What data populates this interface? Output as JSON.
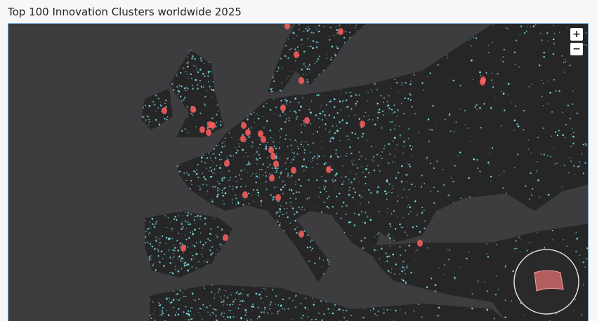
{
  "header": {
    "title": "Top 100 Innovation Clusters worldwide 2025"
  },
  "controls": {
    "zoom_in": "+",
    "zoom_out": "−"
  }
}
